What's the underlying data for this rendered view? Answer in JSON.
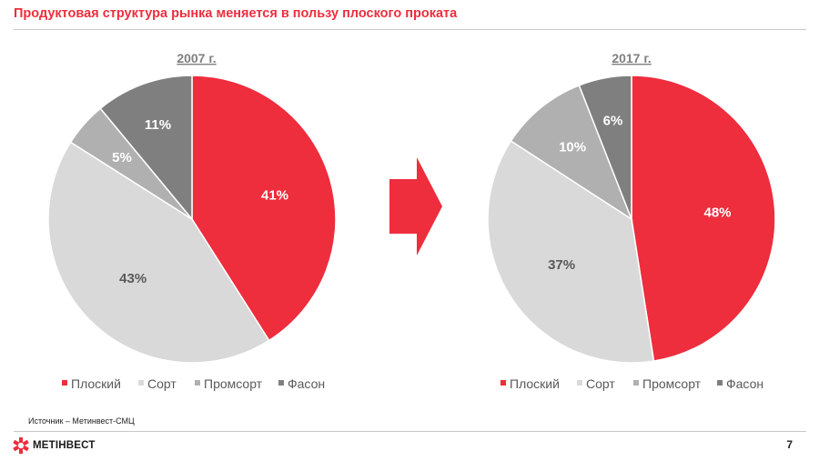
{
  "header": {
    "title": "Продуктовая структура рынка меняется в пользу плоского проката"
  },
  "colors": {
    "accent": "#ee2d3d",
    "plosky": "#ee2d3d",
    "sort": "#d9d9d9",
    "promsort": "#b0b0b0",
    "fason": "#7f7f7f"
  },
  "chart_data": [
    {
      "type": "pie",
      "title": "2007 г.",
      "categories": [
        "Плоский",
        "Сорт",
        "Промсорт",
        "Фасон"
      ],
      "values": [
        41,
        43,
        5,
        11
      ],
      "labels": [
        "41%",
        "43%",
        "5%",
        "11%"
      ],
      "legend": "bottom"
    },
    {
      "type": "pie",
      "title": "2017 г.",
      "categories": [
        "Плоский",
        "Сорт",
        "Промсорт",
        "Фасон"
      ],
      "values": [
        48,
        37,
        10,
        6
      ],
      "labels": [
        "48%",
        "37%",
        "10%",
        "6%"
      ],
      "legend": "bottom"
    }
  ],
  "footer": {
    "source": "Источник – Метинвест-СМЦ",
    "brand": "МЕТІНВЕСТ",
    "page": "7"
  }
}
